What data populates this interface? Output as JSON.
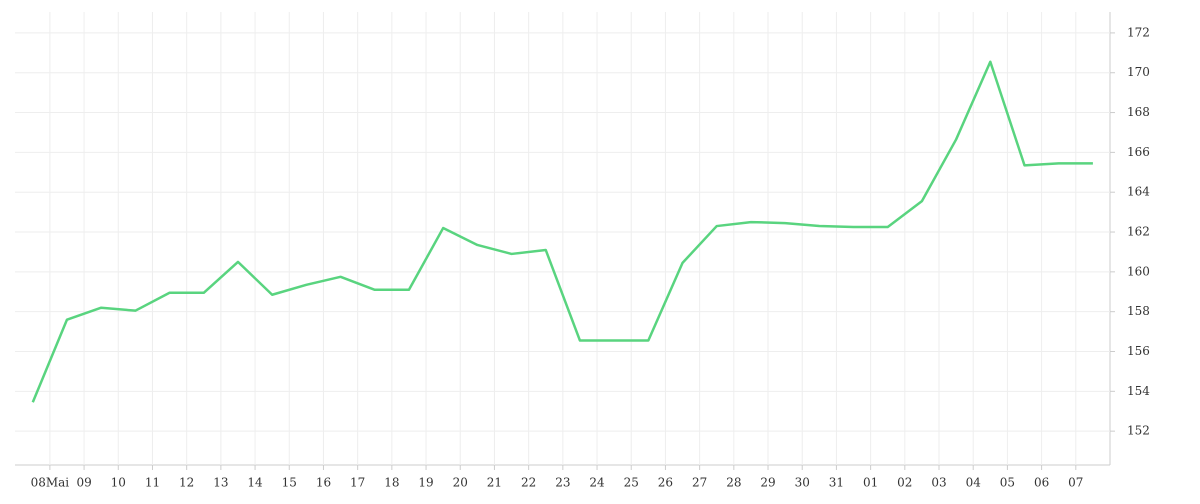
{
  "chart_data": {
    "type": "line",
    "x": [
      -0.5,
      0.5,
      1.5,
      2.5,
      3.5,
      4.5,
      5.5,
      6.5,
      7.5,
      8.5,
      9.5,
      10.5,
      11.5,
      12.5,
      13.5,
      14.5,
      15.5,
      16.5,
      17.5,
      18.5,
      19.5,
      20.5,
      21.5,
      22.5,
      23.5,
      24.5,
      25.5,
      26.5,
      27.5,
      28.5,
      29.5,
      30.5
    ],
    "series": [
      {
        "color": "#59d47f",
        "values": [
          153.45,
          157.6,
          158.2,
          158.05,
          158.95,
          158.95,
          160.5,
          158.85,
          159.35,
          159.75,
          159.1,
          159.1,
          162.2,
          161.35,
          160.9,
          161.1,
          156.55,
          156.55,
          156.55,
          160.45,
          162.3,
          162.5,
          162.45,
          162.3,
          162.25,
          162.25,
          163.55,
          166.65,
          170.55,
          165.35,
          165.45,
          165.45
        ]
      }
    ],
    "xlim": [
      -1.02,
      31
    ],
    "xticks": [
      {
        "value": 0,
        "label": "08Mai"
      },
      {
        "value": 1,
        "label": "09"
      },
      {
        "value": 2,
        "label": "10"
      },
      {
        "value": 3,
        "label": "11"
      },
      {
        "value": 4,
        "label": "12"
      },
      {
        "value": 5,
        "label": "13"
      },
      {
        "value": 6,
        "label": "14"
      },
      {
        "value": 7,
        "label": "15"
      },
      {
        "value": 8,
        "label": "16"
      },
      {
        "value": 9,
        "label": "17"
      },
      {
        "value": 10,
        "label": "18"
      },
      {
        "value": 11,
        "label": "19"
      },
      {
        "value": 12,
        "label": "20"
      },
      {
        "value": 13,
        "label": "21"
      },
      {
        "value": 14,
        "label": "22"
      },
      {
        "value": 15,
        "label": "23"
      },
      {
        "value": 16,
        "label": "24"
      },
      {
        "value": 17,
        "label": "25"
      },
      {
        "value": 18,
        "label": "26"
      },
      {
        "value": 19,
        "label": "27"
      },
      {
        "value": 20,
        "label": "28"
      },
      {
        "value": 21,
        "label": "29"
      },
      {
        "value": 22,
        "label": "30"
      },
      {
        "value": 23,
        "label": "31"
      },
      {
        "value": 24,
        "label": "01"
      },
      {
        "value": 25,
        "label": "02"
      },
      {
        "value": 26,
        "label": "03"
      },
      {
        "value": 27,
        "label": "04"
      },
      {
        "value": 28,
        "label": "05"
      },
      {
        "value": 29,
        "label": "06"
      },
      {
        "value": 30,
        "label": "07"
      }
    ],
    "ylim": [
      150.3,
      173.05
    ],
    "yticks": [
      152,
      154,
      156,
      158,
      160,
      162,
      164,
      166,
      168,
      170,
      172
    ],
    "grid": true
  }
}
